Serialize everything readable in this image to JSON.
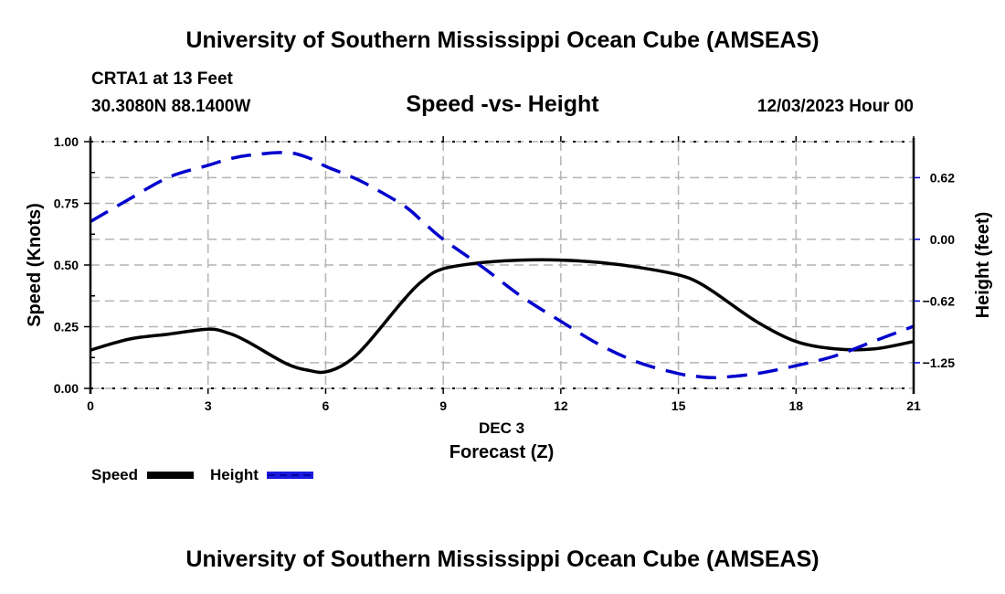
{
  "header": {
    "title": "University of Southern Mississippi Ocean Cube (AMSEAS)",
    "station": "CRTA1 at 13 Feet",
    "coordinates": "30.3080N  88.1400W",
    "subtitle": "Speed -vs- Height",
    "datetime": "12/03/2023 Hour 00"
  },
  "footer": {
    "title": "University of Southern Mississippi Ocean Cube (AMSEAS)"
  },
  "colors": {
    "speed": "#000000",
    "height": "#0000cc",
    "grid": "#b4b4b4"
  },
  "chart_data": {
    "type": "line",
    "title": "Speed -vs- Height",
    "xlabel": "Forecast (Z)",
    "xlabel_date": "DEC 3",
    "ylabel": "Speed (Knots)",
    "y2label": "Height (feet)",
    "xlim": [
      0,
      21
    ],
    "ylim": [
      0,
      1.0
    ],
    "y2lim": [
      -1.51,
      0.99
    ],
    "x_ticks": [
      0,
      3,
      6,
      9,
      12,
      15,
      18,
      21
    ],
    "x_tick_labels": [
      "0",
      "3",
      "6",
      "9",
      "12",
      "15",
      "18",
      "21"
    ],
    "y_ticks": [
      0,
      0.25,
      0.5,
      0.75,
      1.0
    ],
    "y_tick_labels": [
      "0.00",
      "0.25",
      "0.50",
      "0.75",
      "1.00"
    ],
    "y2_ticks": [
      0.625,
      0,
      -0.625,
      -1.25
    ],
    "y2_tick_labels": [
      "0.62",
      "0.00",
      "−0.62",
      "−1.25"
    ],
    "grid": true,
    "legend_position": "bottom-left",
    "x": [
      0,
      1,
      2,
      3,
      3.5,
      4,
      5,
      5.6,
      6,
      6.5,
      7,
      8,
      8.5,
      9,
      10,
      11,
      12,
      13,
      14,
      15,
      15.5,
      16,
      17,
      18,
      19,
      20,
      21
    ],
    "series": [
      {
        "name": "Speed",
        "axis": "left",
        "style": "solid",
        "values": [
          0.155,
          0.2,
          0.22,
          0.24,
          0.225,
          0.19,
          0.1,
          0.072,
          0.067,
          0.1,
          0.17,
          0.36,
          0.44,
          0.485,
          0.51,
          0.52,
          0.52,
          0.51,
          0.49,
          0.46,
          0.43,
          0.38,
          0.27,
          0.19,
          0.16,
          0.16,
          0.19
        ]
      },
      {
        "name": "Height",
        "axis": "right",
        "style": "dashed",
        "values": [
          0.18,
          0.41,
          0.63,
          0.75,
          0.81,
          0.85,
          0.88,
          0.82,
          0.74,
          0.66,
          0.57,
          0.34,
          0.17,
          0.0,
          -0.28,
          -0.58,
          -0.83,
          -1.07,
          -1.25,
          -1.36,
          -1.39,
          -1.4,
          -1.36,
          -1.28,
          -1.18,
          -1.03,
          -0.88
        ]
      }
    ],
    "legend": [
      {
        "label": "Speed",
        "style": "solid"
      },
      {
        "label": "Height",
        "style": "dashed"
      }
    ]
  }
}
